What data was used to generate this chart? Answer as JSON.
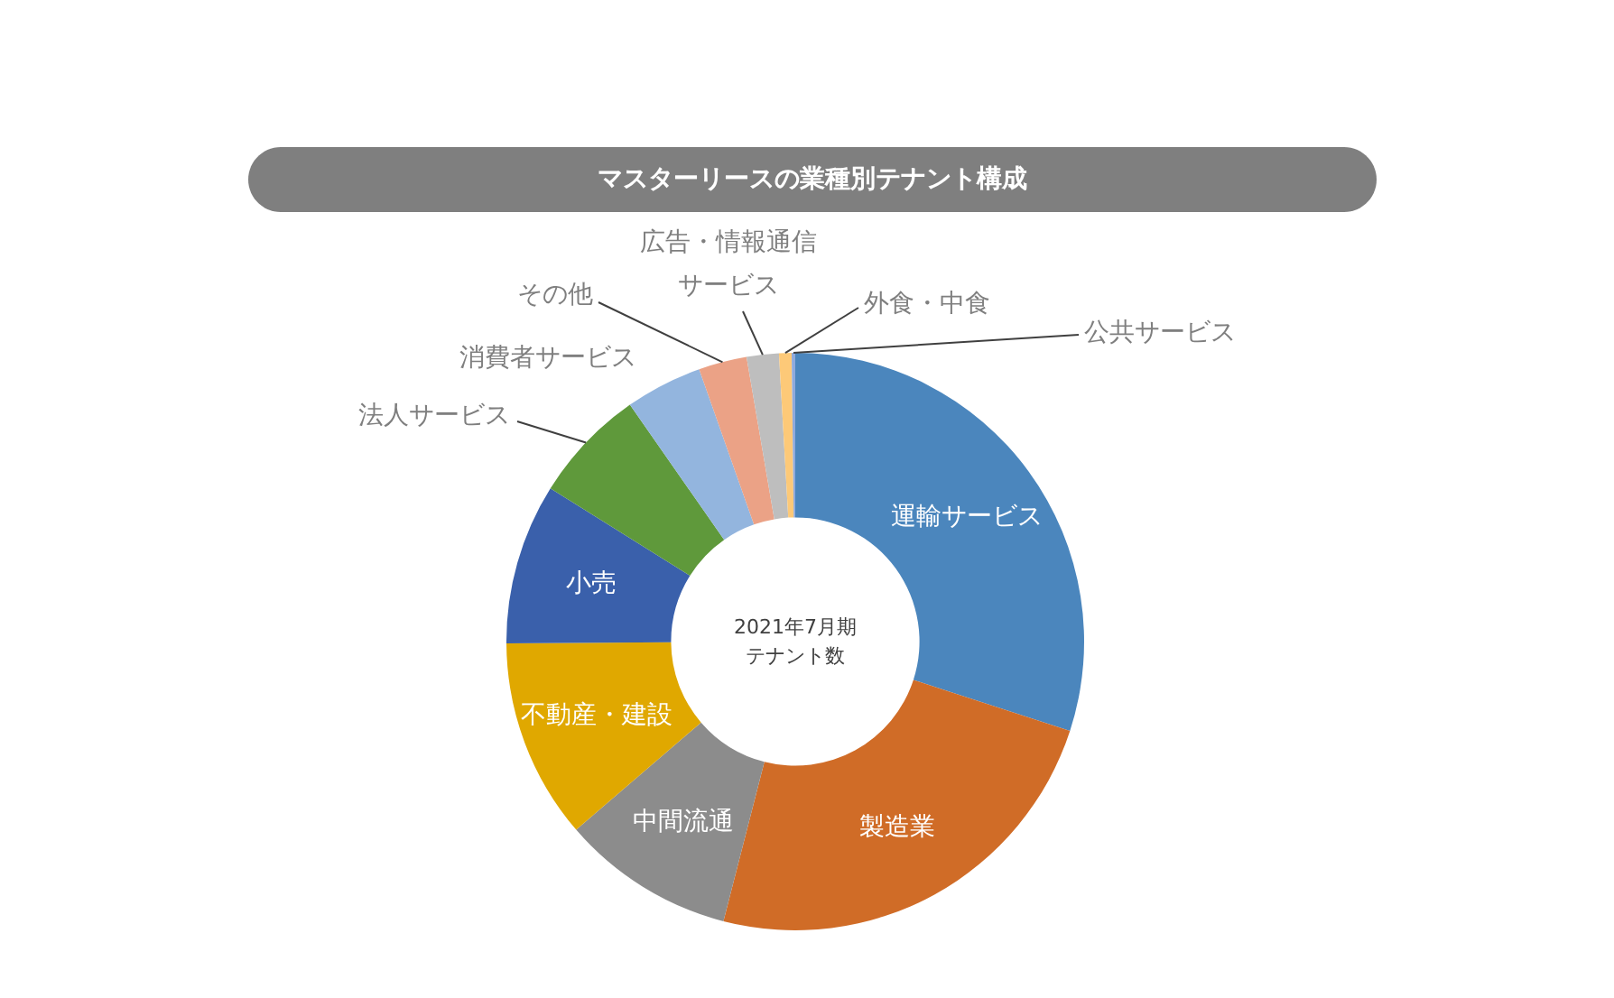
{
  "chart_data": {
    "type": "donut",
    "title": "マスターリースの業種別テナント構成",
    "categories": [
      "運輸サービス",
      "製造業",
      "中間流通",
      "不動産・建設",
      "小売",
      "法人サービス",
      "消費者サービス",
      "その他",
      "広告・情報通信サービス",
      "外食・中食",
      "公共サービス"
    ],
    "values": [
      30,
      24,
      9.7,
      11.2,
      9,
      6.4,
      4.3,
      2.7,
      1.8,
      0.7,
      0.2
    ],
    "colors": [
      "#4b86bd",
      "#d06c27",
      "#8c8c8c",
      "#e0a800",
      "#3a60ab",
      "#5f993b",
      "#93b5de",
      "#eba286",
      "#bebebe",
      "#fdc978",
      "#8faadc"
    ],
    "annotations": [
      "2021年7月期",
      "テナント数"
    ]
  }
}
